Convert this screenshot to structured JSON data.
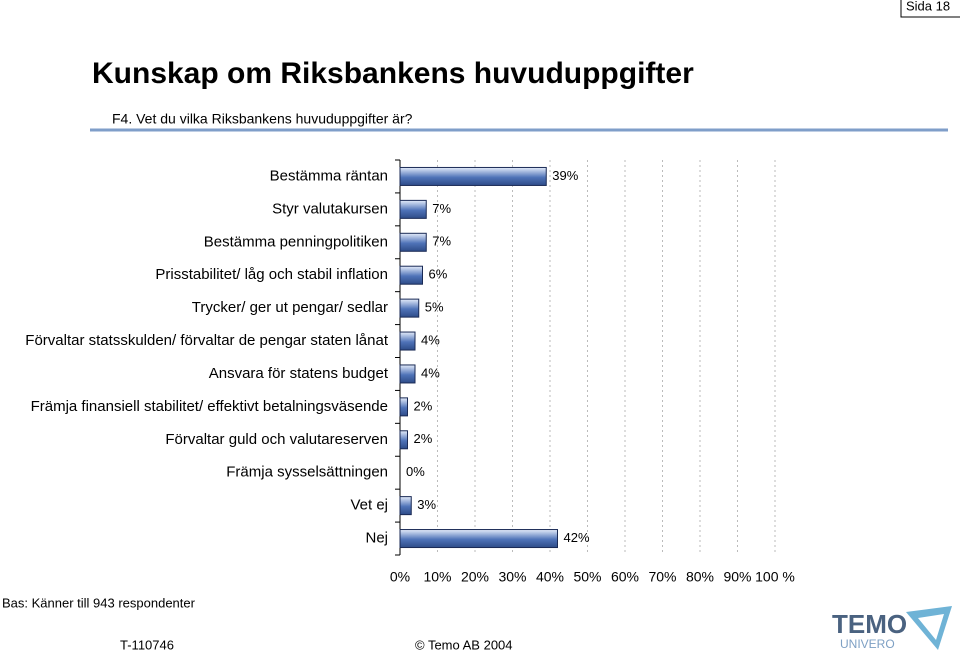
{
  "page_number": "Sida 18",
  "chart_data": {
    "type": "bar",
    "orientation": "horizontal",
    "title": "Kunskap om Riksbankens huvuduppgifter",
    "subtitle": "F4. Vet du vilka Riksbankens huvuduppgifter är?",
    "categories": [
      "Bestämma räntan",
      "Styr valutakursen",
      "Bestämma penningpolitiken",
      "Prisstabilitet/ låg och stabil inflation",
      "Trycker/ ger ut pengar/ sedlar",
      "Förvaltar statsskulden/ förvaltar de pengar staten lånat",
      "Ansvara för statens budget",
      "Främja finansiell stabilitet/ effektivt betalningsväsende",
      "Förvaltar guld och valutareserven",
      "Främja sysselsättningen",
      "Vet ej",
      "Nej"
    ],
    "values": [
      39,
      7,
      7,
      6,
      5,
      4,
      4,
      2,
      2,
      0,
      3,
      42
    ],
    "value_labels": [
      "39%",
      "7%",
      "7%",
      "6%",
      "5%",
      "4%",
      "4%",
      "2%",
      "2%",
      "0%",
      "3%",
      "42%"
    ],
    "color": "#4f73b8",
    "xlim": [
      0,
      100
    ],
    "xticks": [
      {
        "value": 0,
        "label": "0%"
      },
      {
        "value": 10,
        "label": "10%"
      },
      {
        "value": 20,
        "label": "20%"
      },
      {
        "value": 30,
        "label": "30%"
      },
      {
        "value": 40,
        "label": "40%"
      },
      {
        "value": 50,
        "label": "50%"
      },
      {
        "value": 60,
        "label": "60%"
      },
      {
        "value": 70,
        "label": "70%"
      },
      {
        "value": 80,
        "label": "80%"
      },
      {
        "value": 90,
        "label": "90%"
      },
      {
        "value": 100,
        "label": "100 %"
      }
    ],
    "grid": true,
    "note": "Bas: Känner till 943 respondenter"
  },
  "footer": {
    "code": "T-110746",
    "copyright": "© Temo AB 2004"
  },
  "logo": {
    "name": "TEMO",
    "sub": "UNIVERO"
  }
}
